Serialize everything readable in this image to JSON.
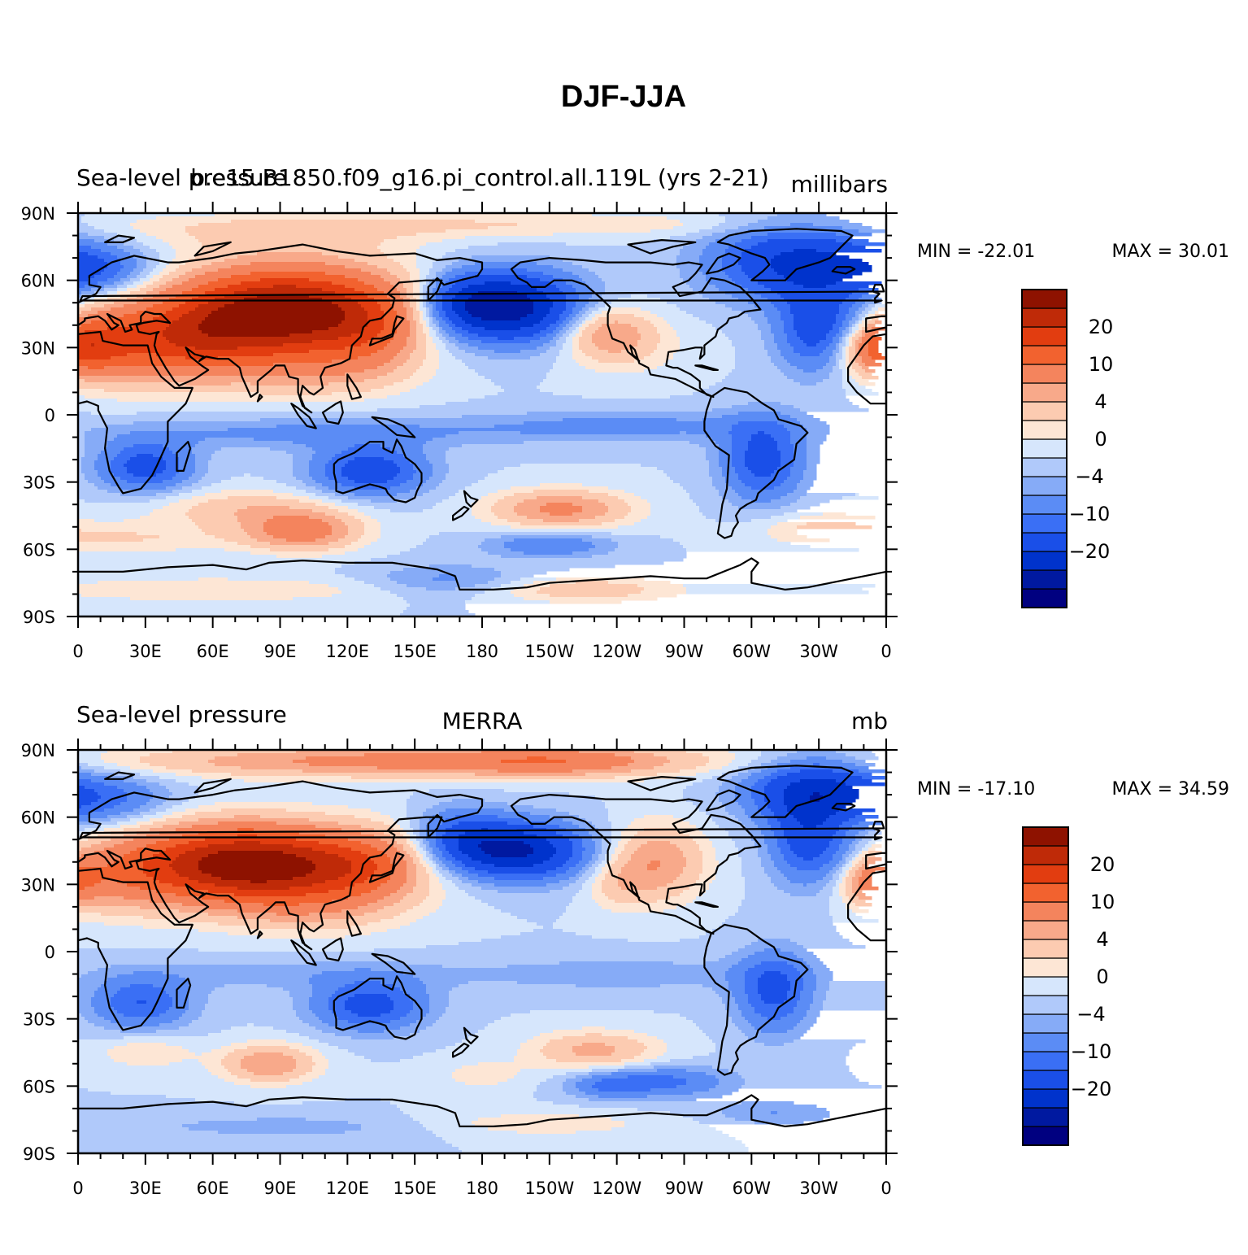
{
  "figure": {
    "title": "DJF-JJA"
  },
  "colors": {
    "levels": [
      "#000080",
      "#0019a0",
      "#0033cc",
      "#1a4fe8",
      "#3a6ff5",
      "#5b8cf5",
      "#86abf7",
      "#b0c9fa",
      "#d6e6fc",
      "#fde6d5",
      "#fccbb1",
      "#f8a98a",
      "#f4845d",
      "#f2622f",
      "#e23d10",
      "#bf2a08",
      "#8e1200"
    ],
    "coast": "#000000"
  },
  "chart_data": [
    {
      "type": "heatmap",
      "left_title": "Sea-level pressure",
      "center_title": "b.e15.B1850.f09_g16.pi_control.all.119L (yrs 2-21)",
      "units": "millibars",
      "min_label": "MIN = -22.01",
      "max_label": "MAX =   30.01",
      "min": -22.01,
      "max": 30.01,
      "colorbar_labels": [
        "20",
        "10",
        "4",
        "0",
        "-4",
        "-10",
        "-20"
      ],
      "lat_ticks": [
        "90N",
        "60N",
        "30N",
        "0",
        "30S",
        "60S",
        "90S"
      ],
      "lon_ticks": [
        "0",
        "30E",
        "60E",
        "90E",
        "120E",
        "150E",
        "180",
        "150W",
        "120W",
        "90W",
        "60W",
        "30W",
        "0"
      ],
      "xlim": [
        0,
        360
      ],
      "ylim": [
        -90,
        90
      ]
    },
    {
      "type": "heatmap",
      "left_title": "Sea-level pressure",
      "center_title": "MERRA",
      "units": "mb",
      "min_label": "MIN = -17.10",
      "max_label": "MAX =   34.59",
      "min": -17.1,
      "max": 34.59,
      "colorbar_labels": [
        "20",
        "10",
        "4",
        "0",
        "-4",
        "-10",
        "-20"
      ],
      "lat_ticks": [
        "90N",
        "60N",
        "30N",
        "0",
        "30S",
        "60S",
        "90S"
      ],
      "lon_ticks": [
        "0",
        "30E",
        "60E",
        "90E",
        "120E",
        "150E",
        "180",
        "150W",
        "120W",
        "90W",
        "60W",
        "30W",
        "0"
      ],
      "xlim": [
        0,
        360
      ],
      "ylim": [
        -90,
        90
      ]
    }
  ]
}
